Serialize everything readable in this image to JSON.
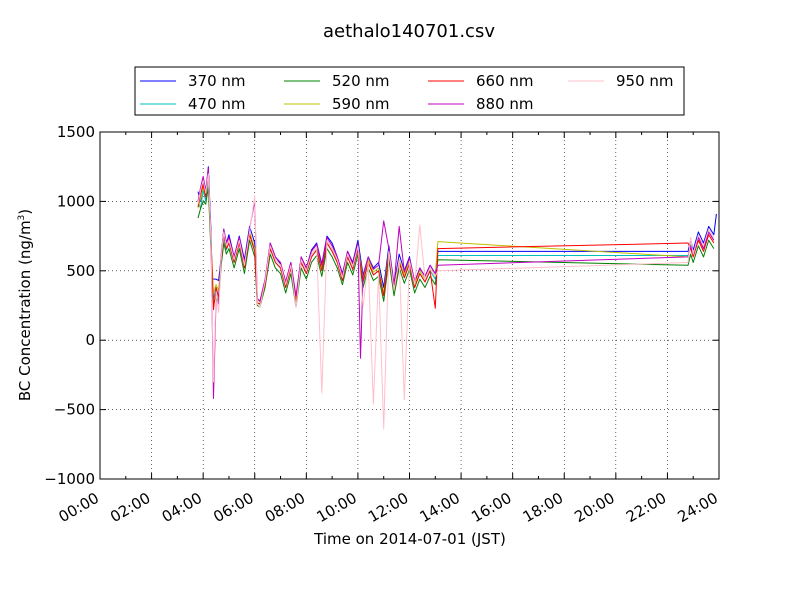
{
  "chart_data": {
    "type": "line",
    "title": "aethalo140701.csv",
    "xlabel": "Time on 2014-07-01 (JST)",
    "ylabel": "BC Concentration (ng/m",
    "ylabel_superscript": "3",
    "ylabel_suffix": ")",
    "x_unit": "hours",
    "xlim": [
      0,
      24
    ],
    "ylim": [
      -1000,
      1500
    ],
    "x_ticks": [
      0,
      2,
      4,
      6,
      8,
      10,
      12,
      14,
      16,
      18,
      20,
      22,
      24
    ],
    "x_tick_labels": [
      "00:00",
      "02:00",
      "04:00",
      "06:00",
      "08:00",
      "10:00",
      "12:00",
      "14:00",
      "16:00",
      "18:00",
      "20:00",
      "22:00",
      "24:00"
    ],
    "y_ticks": [
      -1000,
      -500,
      0,
      500,
      1000,
      1500
    ],
    "y_tick_labels": [
      "−1000",
      "−500",
      "0",
      "500",
      "1000",
      "1500"
    ],
    "grid": true,
    "legend_placement": "top-center",
    "series": [
      {
        "name": "370 nm",
        "color": "#0000ff",
        "x": [
          3.8,
          3.9,
          4.0,
          4.1,
          4.2,
          4.3,
          4.35,
          4.4,
          4.5,
          4.6,
          4.7,
          4.8,
          4.9,
          5.0,
          5.2,
          5.4,
          5.6,
          5.8,
          6.0,
          6.1,
          6.2,
          6.4,
          6.6,
          6.8,
          7.0,
          7.2,
          7.4,
          7.6,
          7.8,
          8.0,
          8.2,
          8.4,
          8.6,
          8.8,
          9.0,
          9.2,
          9.4,
          9.6,
          9.8,
          10.0,
          10.2,
          10.4,
          10.6,
          10.8,
          11.0,
          11.2,
          11.4,
          11.6,
          11.8,
          12.0,
          12.2,
          12.4,
          12.6,
          12.8,
          13.0,
          13.1,
          22.8,
          22.9,
          23.0,
          23.2,
          23.4,
          23.6,
          23.8,
          23.9
        ],
        "y": [
          1070,
          1000,
          1150,
          1050,
          1250,
          800,
          450,
          440,
          440,
          430,
          600,
          800,
          700,
          760,
          600,
          750,
          580,
          820,
          700,
          300,
          280,
          420,
          700,
          600,
          550,
          420,
          560,
          300,
          600,
          520,
          650,
          700,
          550,
          750,
          700,
          600,
          480,
          640,
          560,
          720,
          470,
          600,
          520,
          560,
          380,
          680,
          400,
          620,
          500,
          600,
          420,
          520,
          460,
          540,
          480,
          640,
          640,
          720,
          650,
          780,
          700,
          820,
          760,
          910
        ]
      },
      {
        "name": "470 nm",
        "color": "#00bfbf",
        "x": [
          3.8,
          3.9,
          4.0,
          4.1,
          4.2,
          4.3,
          4.4,
          4.5,
          4.6,
          4.7,
          4.8,
          4.9,
          5.0,
          5.2,
          5.4,
          5.6,
          5.8,
          6.0,
          6.1,
          6.2,
          6.4,
          6.6,
          6.8,
          7.0,
          7.2,
          7.4,
          7.6,
          7.8,
          8.0,
          8.2,
          8.4,
          8.6,
          8.8,
          9.0,
          9.2,
          9.4,
          9.6,
          9.8,
          10.0,
          10.2,
          10.4,
          10.6,
          10.8,
          11.0,
          11.2,
          11.4,
          11.6,
          11.8,
          12.0,
          12.2,
          12.4,
          12.6,
          12.8,
          13.0,
          13.1,
          22.8,
          22.9,
          23.0,
          23.2,
          23.4,
          23.6,
          23.8
        ],
        "y": [
          1000,
          950,
          1080,
          1000,
          1180,
          700,
          300,
          380,
          320,
          560,
          740,
          650,
          700,
          560,
          700,
          520,
          760,
          640,
          270,
          260,
          400,
          660,
          560,
          520,
          380,
          520,
          280,
          560,
          480,
          600,
          650,
          500,
          700,
          640,
          560,
          430,
          600,
          510,
          660,
          420,
          560,
          470,
          500,
          320,
          620,
          360,
          560,
          450,
          550,
          380,
          480,
          420,
          500,
          440,
          610,
          610,
          690,
          620,
          740,
          660,
          780,
          720
        ]
      },
      {
        "name": "520 nm",
        "color": "#008000",
        "x": [
          3.8,
          3.9,
          4.0,
          4.1,
          4.2,
          4.3,
          4.4,
          4.5,
          4.6,
          4.7,
          4.8,
          4.9,
          5.0,
          5.2,
          5.4,
          5.6,
          5.8,
          6.0,
          6.1,
          6.2,
          6.4,
          6.6,
          6.8,
          7.0,
          7.2,
          7.4,
          7.6,
          7.8,
          8.0,
          8.2,
          8.4,
          8.6,
          8.8,
          9.0,
          9.2,
          9.4,
          9.6,
          9.8,
          10.0,
          10.2,
          10.4,
          10.6,
          10.8,
          11.0,
          11.2,
          11.4,
          11.6,
          11.8,
          12.0,
          12.2,
          12.4,
          12.6,
          12.8,
          13.0,
          13.1,
          22.8,
          22.9,
          23.0,
          23.2,
          23.4,
          23.6,
          23.8
        ],
        "y": [
          880,
          950,
          1000,
          980,
          1100,
          650,
          260,
          320,
          280,
          540,
          700,
          620,
          660,
          520,
          660,
          480,
          720,
          600,
          250,
          240,
          380,
          620,
          520,
          480,
          340,
          480,
          240,
          520,
          440,
          560,
          610,
          460,
          660,
          600,
          520,
          400,
          560,
          470,
          620,
          380,
          520,
          430,
          460,
          280,
          580,
          320,
          520,
          410,
          510,
          340,
          440,
          380,
          460,
          400,
          580,
          540,
          620,
          560,
          680,
          600,
          720,
          660
        ]
      },
      {
        "name": "590 nm",
        "color": "#bfbf00",
        "x": [
          3.8,
          3.9,
          4.0,
          4.1,
          4.2,
          4.3,
          4.4,
          4.5,
          4.6,
          4.7,
          4.8,
          4.9,
          5.0,
          5.2,
          5.4,
          5.6,
          5.8,
          6.0,
          6.1,
          6.2,
          6.4,
          6.6,
          6.8,
          7.0,
          7.2,
          7.4,
          7.6,
          7.8,
          8.0,
          8.2,
          8.4,
          8.6,
          8.8,
          9.0,
          9.2,
          9.4,
          9.6,
          9.8,
          10.0,
          10.2,
          10.4,
          10.6,
          10.8,
          11.0,
          11.2,
          11.4,
          11.6,
          11.8,
          12.0,
          12.2,
          12.4,
          12.6,
          12.8,
          13.0,
          13.1,
          22.8,
          22.9,
          23.0,
          23.2,
          23.4,
          23.6,
          23.8
        ],
        "y": [
          950,
          1020,
          1100,
          1050,
          1200,
          720,
          340,
          400,
          360,
          600,
          780,
          680,
          720,
          580,
          720,
          540,
          780,
          660,
          290,
          280,
          420,
          680,
          580,
          540,
          400,
          540,
          300,
          580,
          500,
          620,
          670,
          520,
          720,
          660,
          580,
          450,
          620,
          530,
          680,
          440,
          580,
          490,
          520,
          340,
          640,
          380,
          580,
          470,
          570,
          400,
          500,
          440,
          520,
          460,
          710,
          600,
          680,
          620,
          740,
          660,
          780,
          720
        ]
      },
      {
        "name": "660 nm",
        "color": "#ff0000",
        "x": [
          3.8,
          3.9,
          4.0,
          4.1,
          4.2,
          4.3,
          4.4,
          4.5,
          4.6,
          4.7,
          4.8,
          4.9,
          5.0,
          5.2,
          5.4,
          5.6,
          5.8,
          6.0,
          6.1,
          6.2,
          6.4,
          6.6,
          6.8,
          7.0,
          7.2,
          7.4,
          7.6,
          7.8,
          8.0,
          8.2,
          8.4,
          8.6,
          8.8,
          9.0,
          9.2,
          9.4,
          9.6,
          9.8,
          10.0,
          10.2,
          10.4,
          10.6,
          10.8,
          11.0,
          11.2,
          11.4,
          11.6,
          11.8,
          12.0,
          12.2,
          12.4,
          12.6,
          12.8,
          13.0,
          13.1,
          22.8,
          22.9,
          23.0,
          23.2,
          23.4,
          23.6,
          23.8
        ],
        "y": [
          960,
          1060,
          1120,
          1030,
          1220,
          740,
          220,
          380,
          300,
          580,
          760,
          660,
          700,
          560,
          700,
          520,
          760,
          640,
          270,
          260,
          400,
          660,
          560,
          520,
          380,
          520,
          280,
          560,
          480,
          600,
          650,
          500,
          700,
          640,
          560,
          430,
          600,
          510,
          660,
          420,
          560,
          470,
          500,
          320,
          620,
          360,
          560,
          450,
          550,
          380,
          480,
          420,
          500,
          230,
          660,
          700,
          660,
          600,
          720,
          640,
          760,
          700
        ]
      },
      {
        "name": "880 nm",
        "color": "#bf00bf",
        "x": [
          3.8,
          3.9,
          4.0,
          4.1,
          4.2,
          4.3,
          4.4,
          4.5,
          4.6,
          4.7,
          4.8,
          4.9,
          5.0,
          5.2,
          5.4,
          5.6,
          5.8,
          6.0,
          6.1,
          6.2,
          6.4,
          6.6,
          6.8,
          7.0,
          7.2,
          7.4,
          7.6,
          7.8,
          8.0,
          8.2,
          8.4,
          8.6,
          8.8,
          9.0,
          9.2,
          9.4,
          9.6,
          9.8,
          10.0,
          10.1,
          10.2,
          10.4,
          10.6,
          10.8,
          11.0,
          11.2,
          11.4,
          11.6,
          11.8,
          12.0,
          12.2,
          12.4,
          12.6,
          12.8,
          13.0,
          13.1,
          22.8,
          22.9,
          23.0,
          23.2,
          23.4,
          23.6,
          23.8
        ],
        "y": [
          1000,
          1100,
          1180,
          1080,
          1240,
          760,
          -420,
          300,
          260,
          620,
          800,
          700,
          740,
          600,
          740,
          560,
          800,
          1000,
          300,
          280,
          440,
          700,
          600,
          560,
          420,
          560,
          320,
          600,
          520,
          640,
          690,
          540,
          740,
          680,
          600,
          470,
          640,
          550,
          700,
          -130,
          460,
          600,
          510,
          540,
          860,
          660,
          400,
          820,
          490,
          590,
          420,
          520,
          460,
          540,
          480,
          540,
          600,
          680,
          620,
          740,
          660,
          780,
          720
        ]
      },
      {
        "name": "950 nm",
        "color": "#ffc0cb",
        "x": [
          3.8,
          3.9,
          4.0,
          4.1,
          4.2,
          4.3,
          4.4,
          4.5,
          4.6,
          4.7,
          4.8,
          4.9,
          5.0,
          5.2,
          5.4,
          5.6,
          5.8,
          6.0,
          6.1,
          6.2,
          6.4,
          6.6,
          6.8,
          7.0,
          7.2,
          7.4,
          7.6,
          7.8,
          8.0,
          8.2,
          8.4,
          8.6,
          8.8,
          9.0,
          9.2,
          9.4,
          9.6,
          9.8,
          10.0,
          10.2,
          10.4,
          10.6,
          10.8,
          11.0,
          11.2,
          11.4,
          11.6,
          11.8,
          12.0,
          12.2,
          12.4,
          12.6,
          12.8,
          13.0,
          13.1,
          22.8,
          22.9,
          23.0,
          23.2,
          23.4,
          23.6,
          23.8
        ],
        "y": [
          980,
          1080,
          1150,
          1060,
          1200,
          740,
          -300,
          350,
          200,
          600,
          780,
          680,
          720,
          580,
          720,
          540,
          780,
          1040,
          260,
          240,
          420,
          680,
          580,
          540,
          400,
          540,
          240,
          580,
          500,
          620,
          670,
          -380,
          720,
          660,
          580,
          450,
          620,
          530,
          680,
          240,
          560,
          -460,
          480,
          -640,
          640,
          360,
          580,
          -430,
          570,
          400,
          830,
          440,
          520,
          460,
          500,
          560,
          740,
          620,
          760,
          680,
          800,
          740
        ]
      }
    ]
  }
}
